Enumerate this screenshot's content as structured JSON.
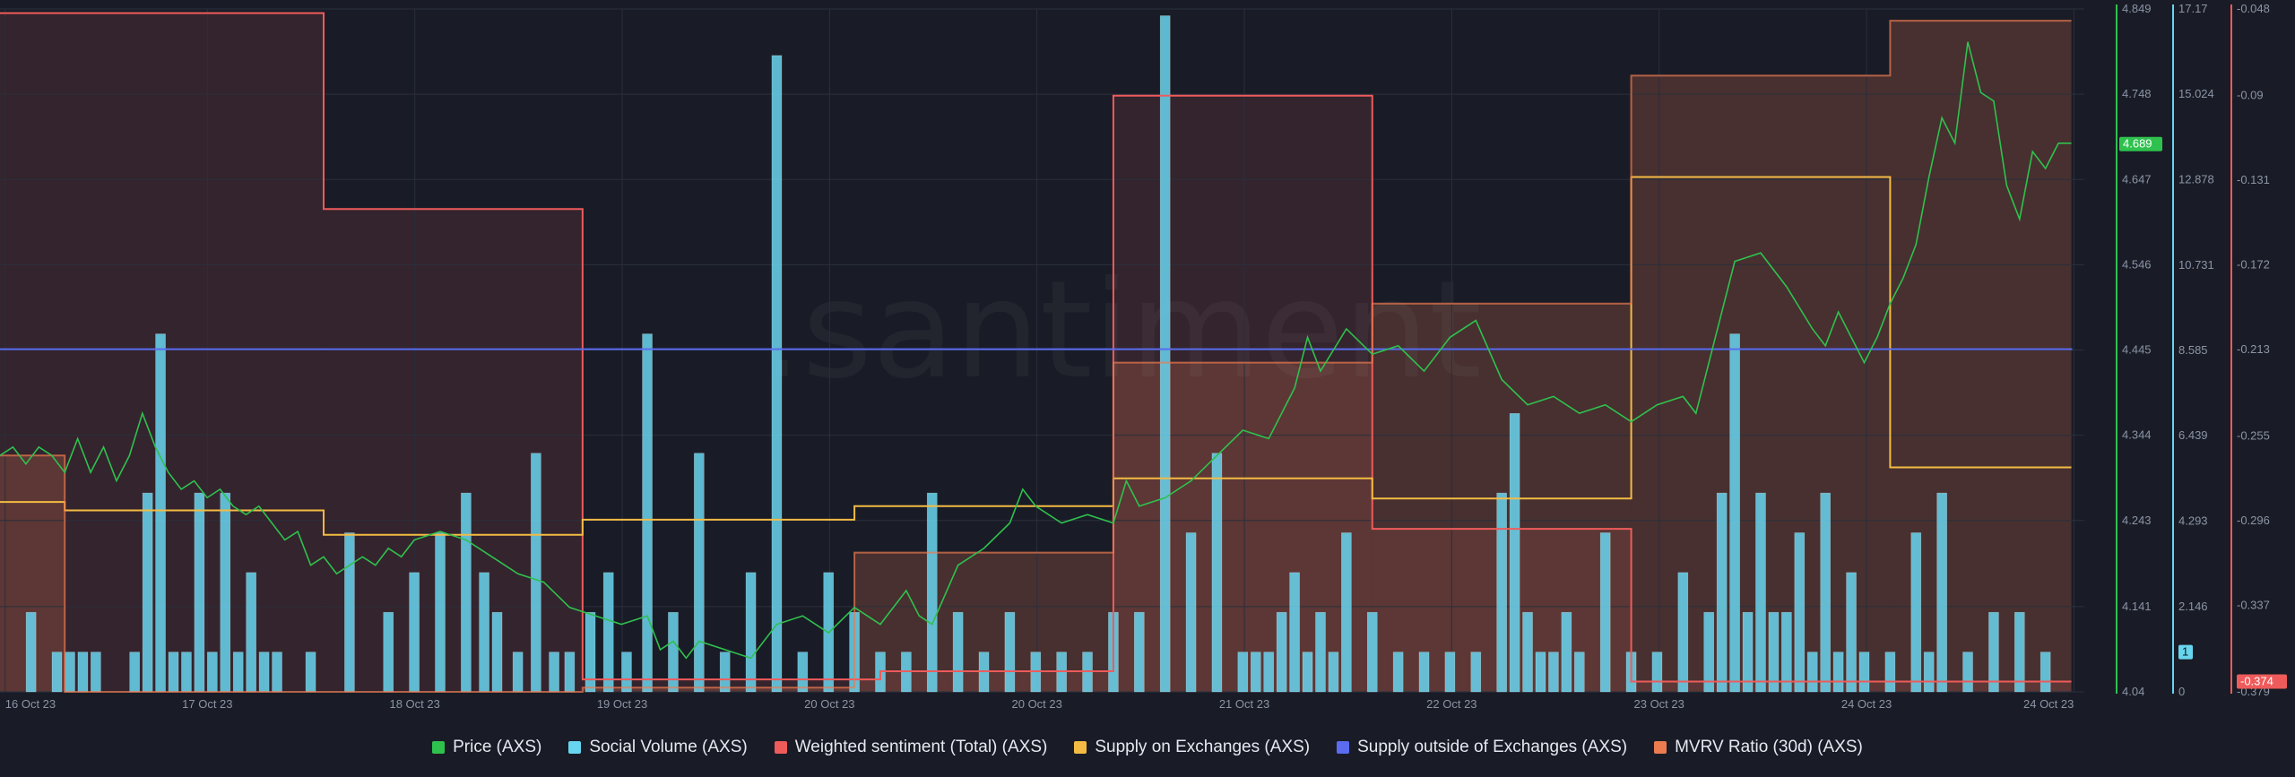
{
  "watermark": ".santiment",
  "colors": {
    "price": "#2fc14e",
    "social": "#68d5ee",
    "sentiment": "#ef5b5b",
    "supply_on": "#f4bb44",
    "supply_outside": "#5b6cf1",
    "mvrv": "#ec7b50",
    "background": "#191c26",
    "grid": "#2a2f3d"
  },
  "chart_data": {
    "type": "line",
    "x_ticks": [
      "16 Oct 23",
      "17 Oct 23",
      "18 Oct 23",
      "19 Oct 23",
      "20 Oct 23",
      "20 Oct 23",
      "21 Oct 23",
      "22 Oct 23",
      "23 Oct 23",
      "24 Oct 23",
      "24 Oct 23"
    ],
    "x_range": [
      0,
      8.05
    ],
    "axes": {
      "price": {
        "ticks": [
          "4.849",
          "4.748",
          "4.647",
          "4.546",
          "4.445",
          "4.344",
          "4.243",
          "4.141",
          "4.04"
        ],
        "range": [
          4.04,
          4.849
        ]
      },
      "social": {
        "ticks": [
          "17.17",
          "15.024",
          "12.878",
          "10.731",
          "8.585",
          "6.439",
          "4.293",
          "2.146",
          "0"
        ],
        "range": [
          0,
          17.17
        ]
      },
      "sentiment": {
        "ticks": [
          "-0.048",
          "-0.09",
          "-0.131",
          "-0.172",
          "-0.213",
          "-0.255",
          "-0.296",
          "-0.337",
          "-0.379"
        ],
        "range": [
          -0.379,
          -0.048
        ]
      }
    },
    "current_values": {
      "price": "4.689",
      "social": "1",
      "sentiment": "-0.374"
    },
    "series": [
      {
        "name": "Price (AXS)",
        "axis": "price",
        "style": "line",
        "x": [
          0,
          0.05,
          0.1,
          0.15,
          0.2,
          0.25,
          0.3,
          0.35,
          0.4,
          0.45,
          0.5,
          0.55,
          0.6,
          0.65,
          0.7,
          0.75,
          0.8,
          0.85,
          0.9,
          0.95,
          1.0,
          1.05,
          1.1,
          1.15,
          1.2,
          1.25,
          1.3,
          1.35,
          1.4,
          1.45,
          1.5,
          1.55,
          1.6,
          1.7,
          1.8,
          1.9,
          2.0,
          2.1,
          2.2,
          2.3,
          2.4,
          2.5,
          2.55,
          2.6,
          2.65,
          2.7,
          2.8,
          2.9,
          3.0,
          3.1,
          3.2,
          3.3,
          3.4,
          3.5,
          3.55,
          3.6,
          3.7,
          3.8,
          3.9,
          3.95,
          4.0,
          4.1,
          4.2,
          4.3,
          4.35,
          4.4,
          4.5,
          4.6,
          4.7,
          4.8,
          4.9,
          5.0,
          5.05,
          5.1,
          5.2,
          5.3,
          5.4,
          5.5,
          5.6,
          5.7,
          5.8,
          5.9,
          6.0,
          6.1,
          6.2,
          6.3,
          6.4,
          6.5,
          6.55,
          6.6,
          6.7,
          6.8,
          6.9,
          7.0,
          7.05,
          7.1,
          7.2,
          7.25,
          7.3,
          7.35,
          7.4,
          7.45,
          7.5,
          7.55,
          7.6,
          7.65,
          7.7,
          7.75,
          7.8,
          7.85,
          7.9,
          7.95,
          8.0
        ],
        "values": [
          4.32,
          4.33,
          4.31,
          4.33,
          4.32,
          4.3,
          4.34,
          4.3,
          4.33,
          4.29,
          4.32,
          4.37,
          4.33,
          4.3,
          4.28,
          4.29,
          4.27,
          4.28,
          4.26,
          4.25,
          4.26,
          4.24,
          4.22,
          4.23,
          4.19,
          4.2,
          4.18,
          4.19,
          4.2,
          4.19,
          4.21,
          4.2,
          4.22,
          4.23,
          4.22,
          4.2,
          4.18,
          4.17,
          4.14,
          4.13,
          4.12,
          4.13,
          4.09,
          4.1,
          4.08,
          4.1,
          4.09,
          4.08,
          4.12,
          4.13,
          4.11,
          4.14,
          4.12,
          4.16,
          4.13,
          4.12,
          4.19,
          4.21,
          4.24,
          4.28,
          4.26,
          4.24,
          4.25,
          4.24,
          4.29,
          4.26,
          4.27,
          4.29,
          4.32,
          4.35,
          4.34,
          4.4,
          4.46,
          4.42,
          4.47,
          4.44,
          4.45,
          4.42,
          4.46,
          4.48,
          4.41,
          4.38,
          4.39,
          4.37,
          4.38,
          4.36,
          4.38,
          4.39,
          4.37,
          4.43,
          4.55,
          4.56,
          4.52,
          4.47,
          4.45,
          4.49,
          4.43,
          4.46,
          4.5,
          4.53,
          4.57,
          4.65,
          4.72,
          4.69,
          4.81,
          4.75,
          4.74,
          4.64,
          4.6,
          4.68,
          4.66,
          4.69,
          4.69
        ]
      },
      {
        "name": "Social Volume (AXS)",
        "axis": "social",
        "style": "bar",
        "x": [
          0.12,
          0.22,
          0.27,
          0.32,
          0.37,
          0.52,
          0.57,
          0.62,
          0.67,
          0.72,
          0.77,
          0.82,
          0.87,
          0.92,
          0.97,
          1.02,
          1.07,
          1.2,
          1.35,
          1.5,
          1.6,
          1.7,
          1.8,
          1.87,
          1.92,
          2.0,
          2.07,
          2.14,
          2.2,
          2.28,
          2.35,
          2.42,
          2.5,
          2.6,
          2.7,
          2.8,
          2.9,
          3.0,
          3.1,
          3.2,
          3.3,
          3.4,
          3.5,
          3.6,
          3.7,
          3.8,
          3.9,
          4.0,
          4.1,
          4.2,
          4.3,
          4.4,
          4.5,
          4.6,
          4.7,
          4.8,
          4.85,
          4.9,
          4.95,
          5.0,
          5.05,
          5.1,
          5.15,
          5.2,
          5.3,
          5.4,
          5.5,
          5.6,
          5.7,
          5.8,
          5.85,
          5.9,
          5.95,
          6.0,
          6.05,
          6.1,
          6.2,
          6.3,
          6.4,
          6.5,
          6.6,
          6.65,
          6.7,
          6.75,
          6.8,
          6.85,
          6.9,
          6.95,
          7.0,
          7.05,
          7.1,
          7.15,
          7.2,
          7.3,
          7.4,
          7.45,
          7.5,
          7.6,
          7.7,
          7.8,
          7.9
        ],
        "values": [
          2,
          1,
          1,
          1,
          1,
          1,
          5,
          9,
          1,
          1,
          5,
          1,
          5,
          1,
          3,
          1,
          1,
          1,
          4,
          2,
          3,
          4,
          5,
          3,
          2,
          1,
          6,
          1,
          1,
          2,
          3,
          1,
          9,
          2,
          6,
          1,
          3,
          16,
          1,
          3,
          2,
          1,
          1,
          5,
          2,
          1,
          2,
          1,
          1,
          1,
          2,
          2,
          17,
          4,
          6,
          1,
          1,
          1,
          2,
          3,
          1,
          2,
          1,
          4,
          2,
          1,
          1,
          1,
          1,
          5,
          7,
          2,
          1,
          1,
          2,
          1,
          4,
          1,
          1,
          3,
          2,
          5,
          9,
          2,
          5,
          2,
          2,
          4,
          1,
          5,
          1,
          3,
          1,
          1,
          4,
          1,
          5,
          1,
          2,
          2,
          1
        ]
      },
      {
        "name": "Weighted sentiment (Total) (AXS)",
        "axis": "sentiment",
        "style": "step",
        "x": [
          0,
          1.25,
          2.25,
          3.4,
          4.3,
          5.3,
          6.3,
          7.3,
          8.0
        ],
        "values": [
          -0.05,
          -0.145,
          -0.373,
          -0.369,
          -0.09,
          -0.3,
          -0.374,
          -0.374,
          -0.374
        ]
      },
      {
        "name": "Supply on Exchanges (AXS)",
        "axis": "price",
        "style": "step",
        "x": [
          0,
          0.25,
          1.25,
          2.25,
          3.3,
          4.3,
          5.3,
          6.3,
          7.3,
          8.0
        ],
        "values": [
          4.265,
          4.255,
          4.226,
          4.244,
          4.26,
          4.293,
          4.269,
          4.65,
          4.306,
          4.306
        ],
        "note": "rendered on price scale"
      },
      {
        "name": "Supply outside of Exchanges (AXS)",
        "axis": "price",
        "style": "step",
        "x": [
          0,
          8.0
        ],
        "values": [
          4.446,
          4.445
        ]
      },
      {
        "name": "MVRV Ratio (30d) (AXS)",
        "axis": "price",
        "style": "step",
        "x": [
          0,
          0.25,
          1.25,
          2.25,
          3.3,
          4.3,
          5.3,
          6.3,
          7.3,
          8.0
        ],
        "values": [
          4.32,
          4.04,
          4.04,
          4.045,
          4.205,
          4.43,
          4.5,
          4.77,
          4.835,
          4.835
        ]
      }
    ]
  },
  "legend": [
    {
      "label": "Price (AXS)",
      "color": "#2fc14e"
    },
    {
      "label": "Social Volume (AXS)",
      "color": "#68d5ee"
    },
    {
      "label": "Weighted sentiment (Total) (AXS)",
      "color": "#ef5b5b"
    },
    {
      "label": "Supply on Exchanges (AXS)",
      "color": "#f4bb44"
    },
    {
      "label": "Supply outside of Exchanges (AXS)",
      "color": "#5b6cf1"
    },
    {
      "label": "MVRV Ratio (30d) (AXS)",
      "color": "#ec7b50"
    }
  ]
}
